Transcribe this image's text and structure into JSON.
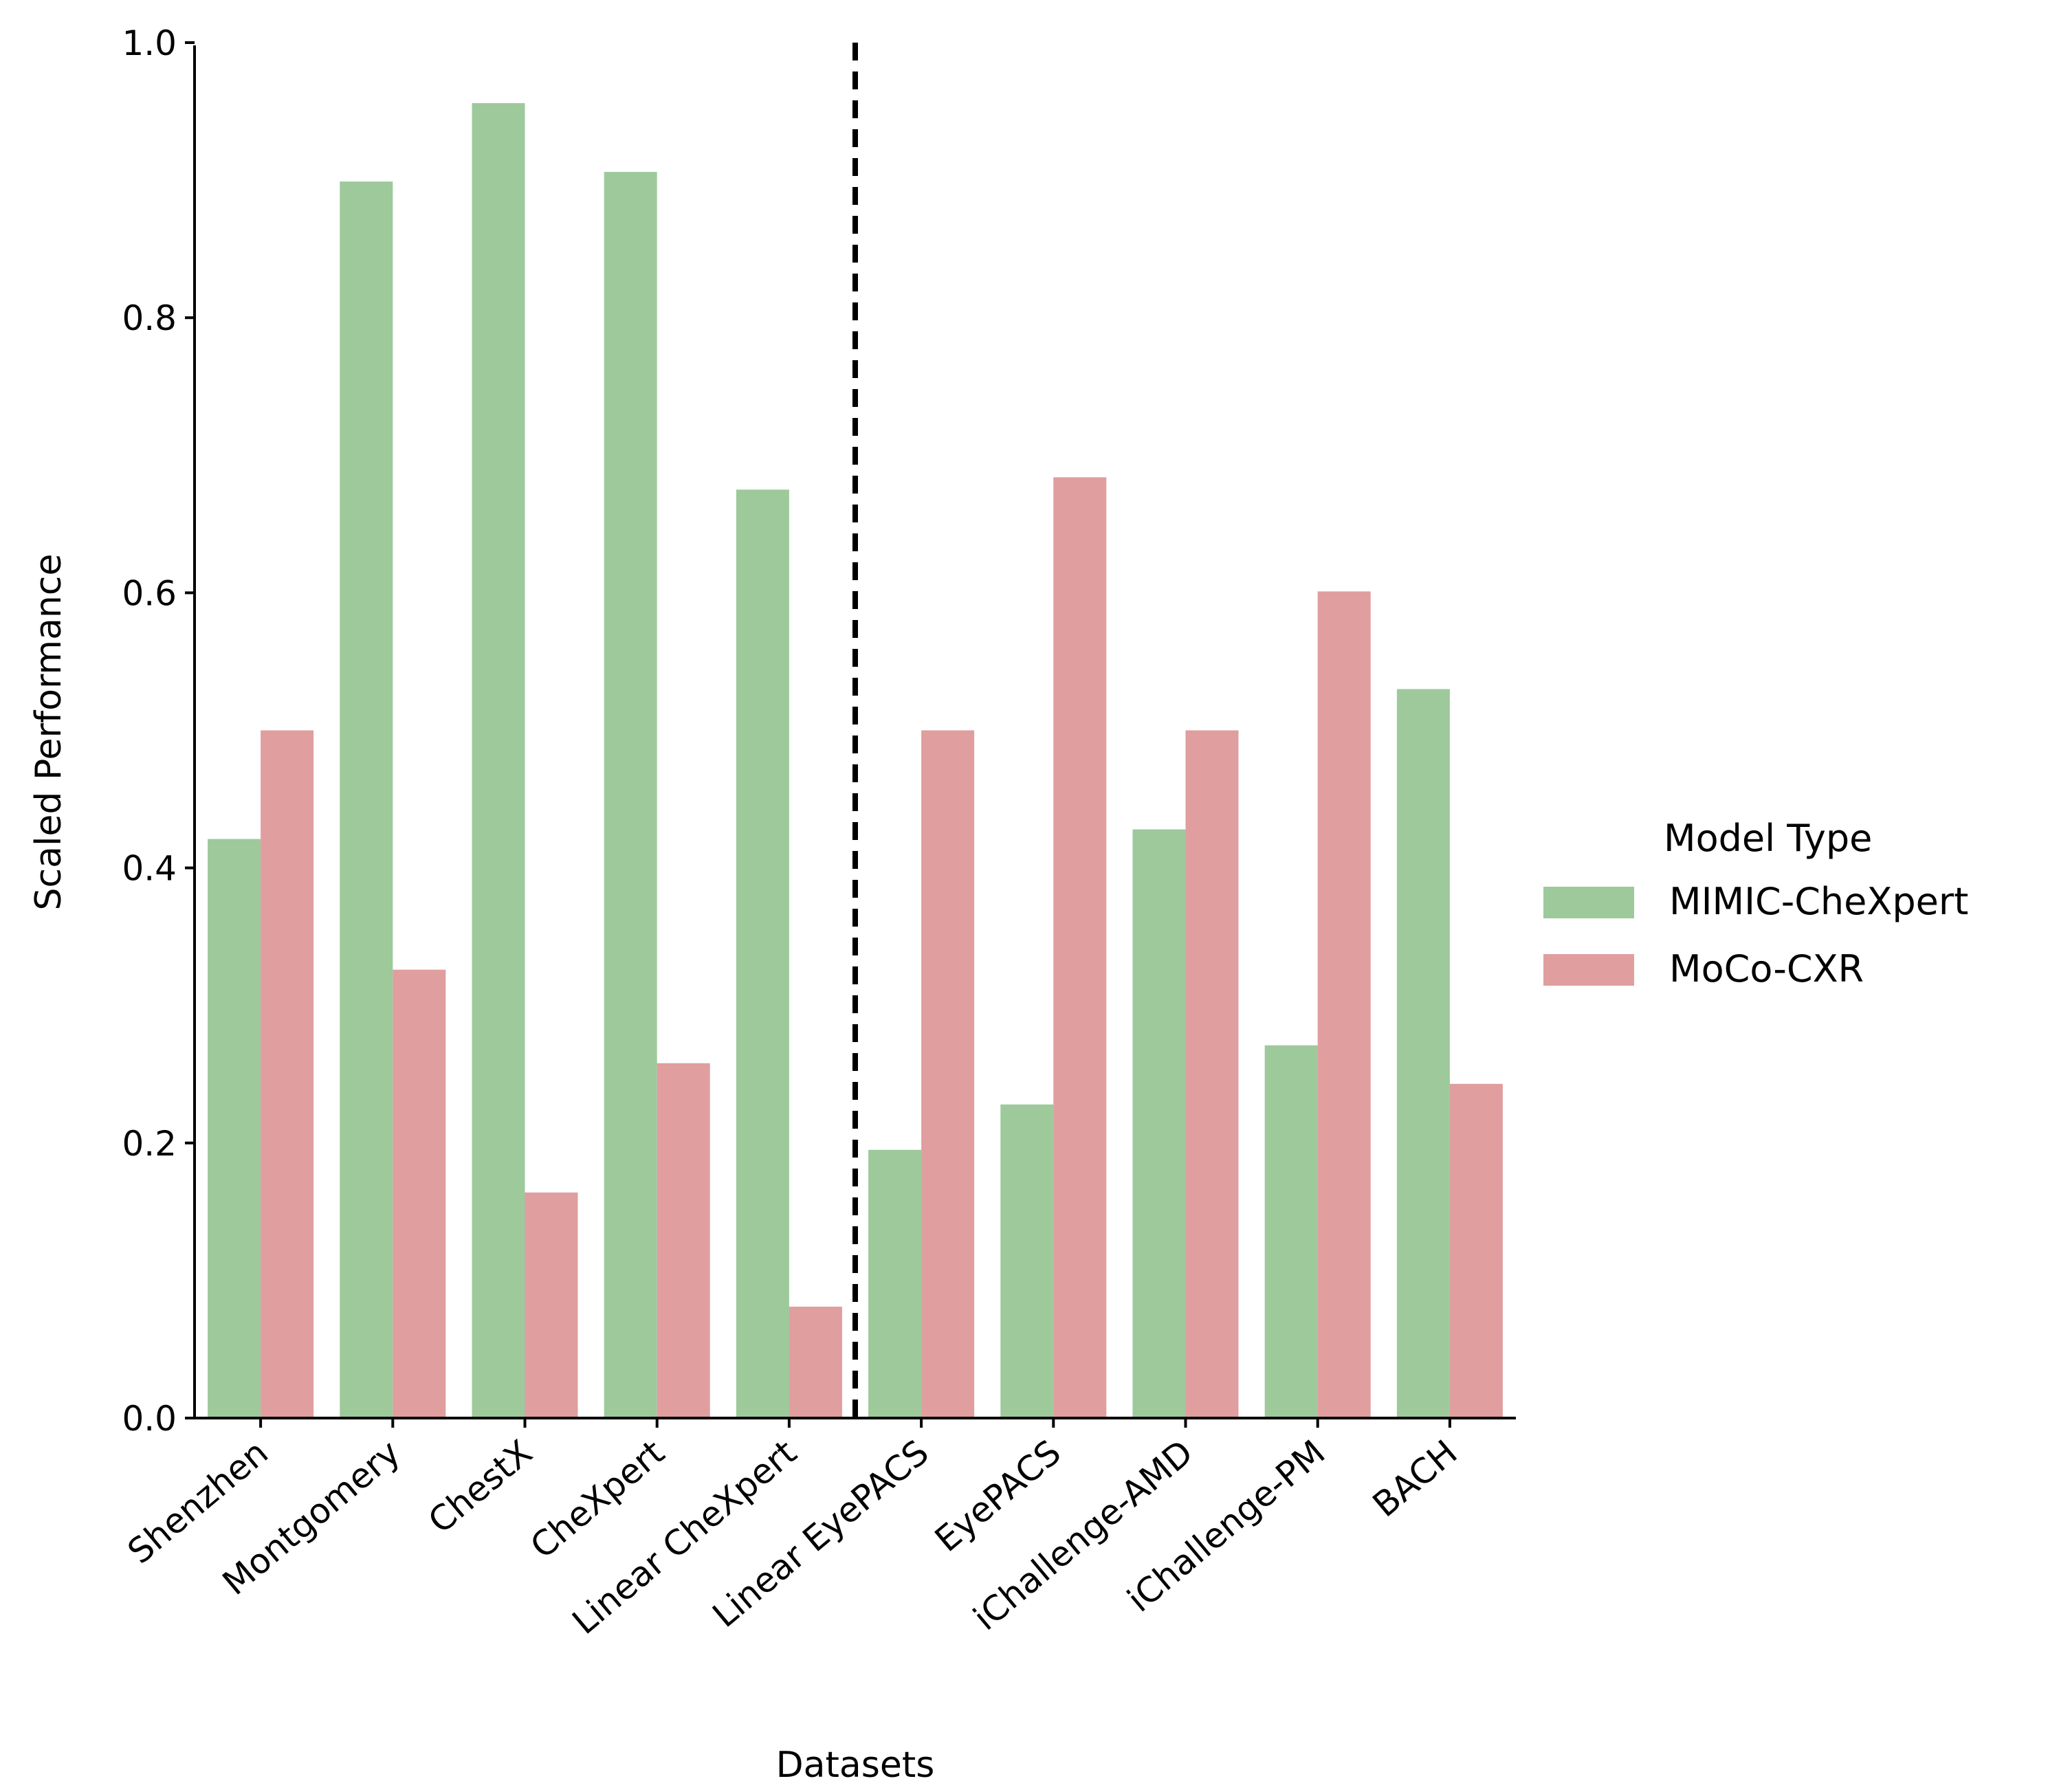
{
  "chart_data": {
    "type": "bar",
    "title": "",
    "xlabel": "Datasets",
    "ylabel": "Scaled Performance",
    "ylim": [
      0,
      1.0
    ],
    "yticks": [
      "0.0",
      "0.2",
      "0.4",
      "0.6",
      "0.8",
      "1.0"
    ],
    "grid": false,
    "categories": [
      "Shenzhen",
      "Montgomery",
      "ChestX",
      "CheXpert",
      "Linear CheXpert",
      "Linear EyePACS",
      "EyePACS",
      "iChallenge-AMD",
      "iChallenge-PM",
      "BACH"
    ],
    "series": [
      {
        "name": "MIMIC-CheXpert",
        "color": "#9dc99b",
        "values": [
          0.421,
          0.899,
          0.956,
          0.906,
          0.675,
          0.195,
          0.228,
          0.428,
          0.271,
          0.53
        ]
      },
      {
        "name": "MoCo-CXR",
        "color": "#e09e9f",
        "values": [
          0.5,
          0.326,
          0.164,
          0.258,
          0.081,
          0.5,
          0.684,
          0.5,
          0.601,
          0.243
        ]
      }
    ],
    "divider": {
      "style": "dashed",
      "between": [
        "Linear CheXpert",
        "Linear EyePACS"
      ]
    },
    "legend": {
      "title": "Model Type",
      "placement": "right"
    }
  }
}
